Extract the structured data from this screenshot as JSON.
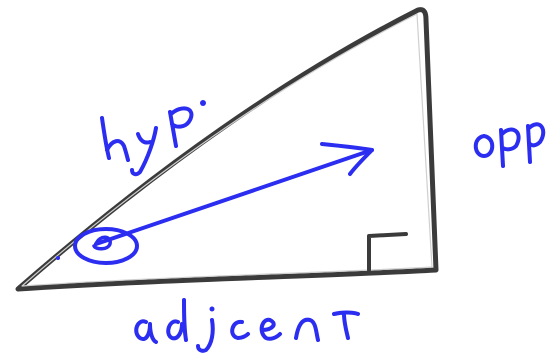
{
  "labels": {
    "hypotenuse": "hyp.",
    "opposite": "opp",
    "adjacent": "adjacent"
  },
  "colors": {
    "ink_black": "#3b3b3b",
    "ink_blue": "#2b2df0",
    "background": "#ffffff"
  }
}
